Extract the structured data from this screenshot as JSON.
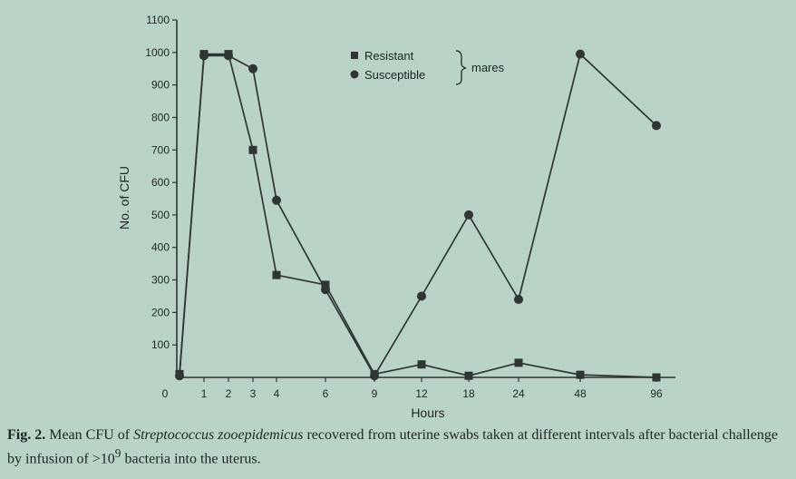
{
  "chart_data": {
    "type": "line",
    "xlabel": "Hours",
    "ylabel": "No. of CFU",
    "x_ticks": [
      "0",
      "1",
      "2",
      "3",
      "4",
      "6",
      "9",
      "12",
      "18",
      "24",
      "48",
      "96"
    ],
    "y_ticks": [
      "100",
      "200",
      "300",
      "400",
      "500",
      "600",
      "700",
      "800",
      "900",
      "1000",
      "1100"
    ],
    "ylim": [
      0,
      1100
    ],
    "legend": {
      "position": "top-center",
      "group_label": "mares"
    },
    "series": [
      {
        "name": "Resistant",
        "marker": "square",
        "x": [
          "0",
          "1",
          "2",
          "3",
          "4",
          "6",
          "9",
          "12",
          "18",
          "24",
          "48",
          "96"
        ],
        "values": [
          10,
          995,
          995,
          700,
          315,
          285,
          10,
          40,
          5,
          45,
          8,
          0
        ]
      },
      {
        "name": "Susceptible",
        "marker": "circle",
        "x": [
          "0",
          "1",
          "2",
          "3",
          "4",
          "6",
          "9",
          "12",
          "18",
          "24",
          "48",
          "96"
        ],
        "values": [
          5,
          990,
          990,
          950,
          545,
          270,
          5,
          250,
          500,
          240,
          995,
          775
        ]
      }
    ]
  },
  "caption": {
    "fig_label": "Fig. 2.",
    "text_before": " Mean CFU of ",
    "species": "Streptococcus zooepidemicus",
    "text_after": " recovered from uterine swabs taken at different intervals after bacterial challenge by infusion of >10",
    "superscript": "9",
    "text_end": " bacteria into the uterus."
  }
}
